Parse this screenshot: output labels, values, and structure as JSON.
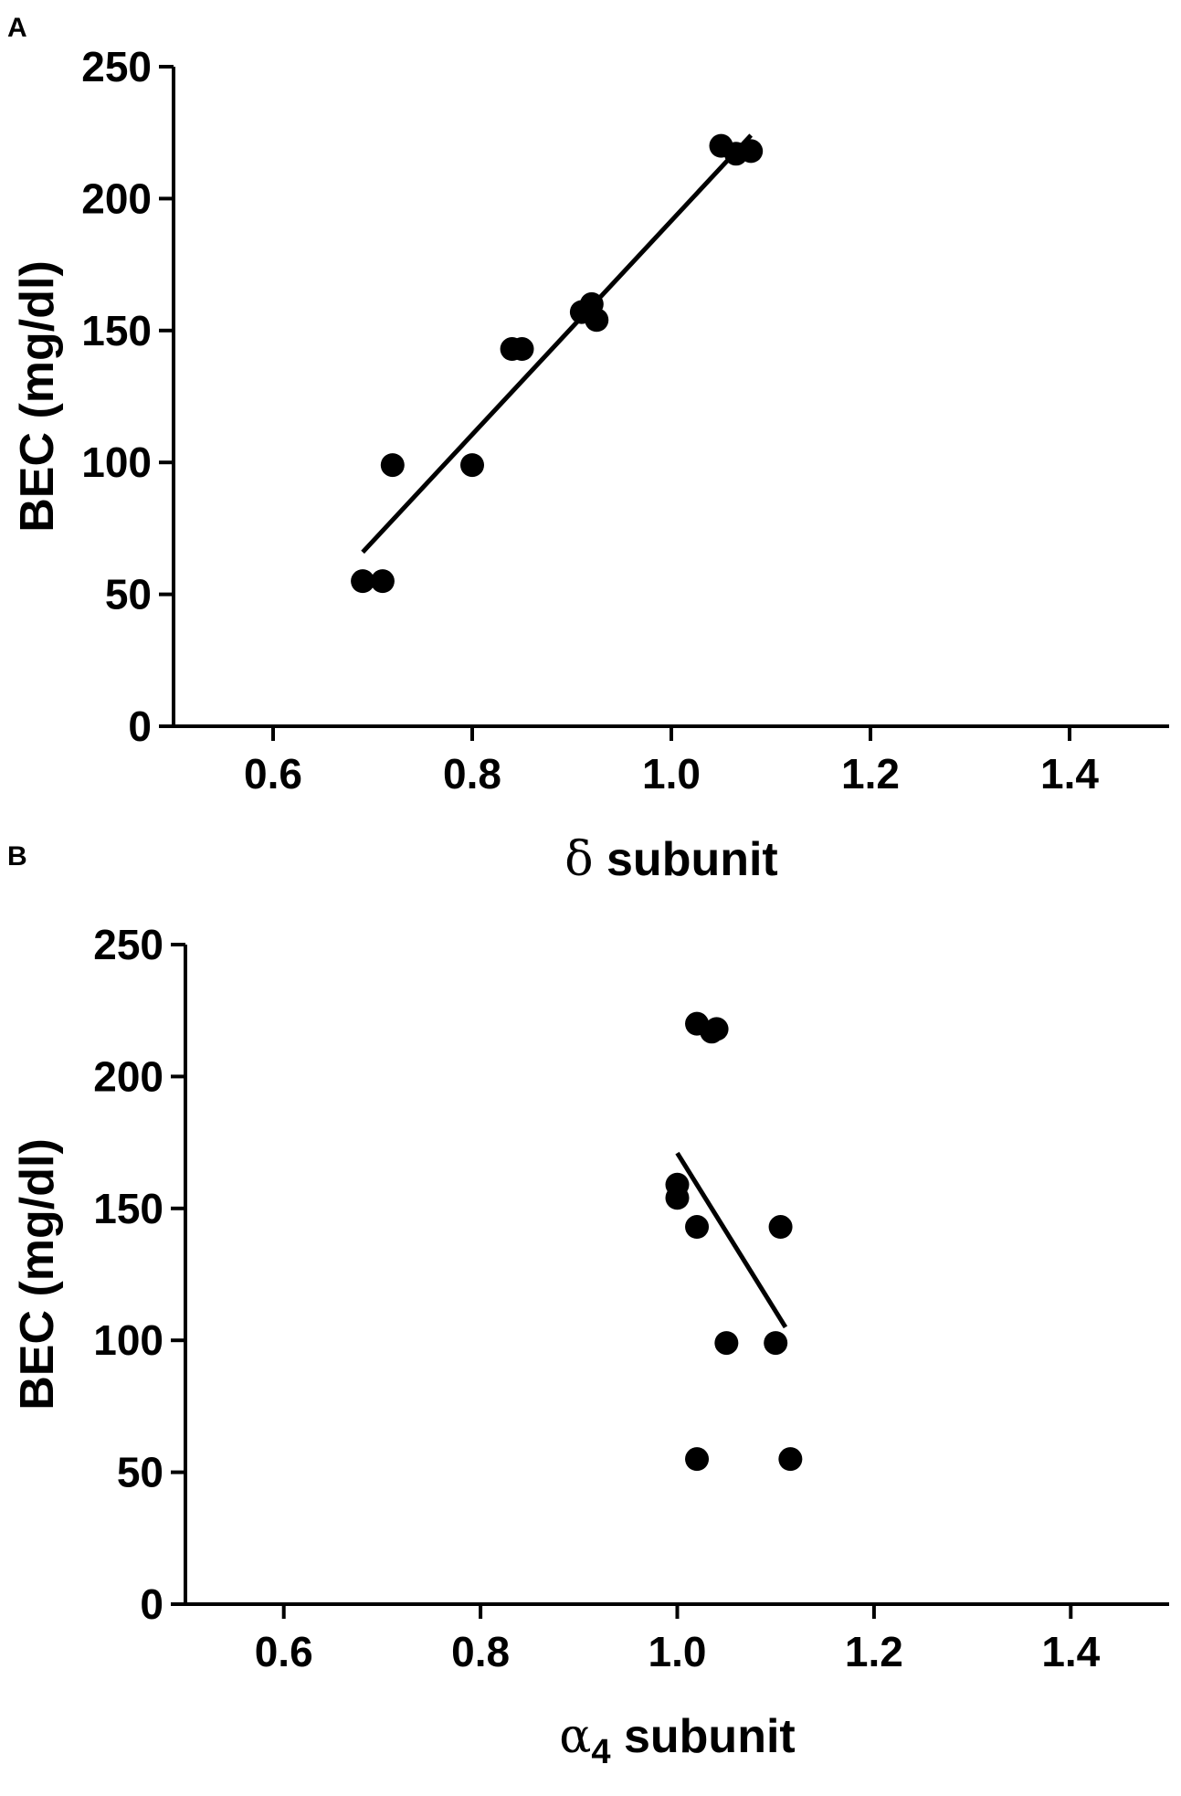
{
  "chart_data": [
    {
      "type": "scatter",
      "panel_label": "A",
      "xlabel_symbol": "δ",
      "xlabel_sub": "",
      "xlabel_rest": " subunit",
      "ylabel": "BEC (mg/dl)",
      "xlim": [
        0.5,
        1.5
      ],
      "ylim": [
        0,
        250
      ],
      "xticks": [
        0.6,
        0.8,
        1.0,
        1.2,
        1.4
      ],
      "xtick_labels": [
        "0.6",
        "0.8",
        "1.0",
        "1.2",
        "1.4"
      ],
      "yticks": [
        0,
        50,
        100,
        150,
        200,
        250
      ],
      "ytick_labels": [
        "0",
        "50",
        "100",
        "150",
        "200",
        "250"
      ],
      "grid": false,
      "points": [
        {
          "x": 0.69,
          "y": 55
        },
        {
          "x": 0.71,
          "y": 55
        },
        {
          "x": 0.72,
          "y": 99
        },
        {
          "x": 0.8,
          "y": 99
        },
        {
          "x": 0.84,
          "y": 143
        },
        {
          "x": 0.85,
          "y": 143
        },
        {
          "x": 0.91,
          "y": 157
        },
        {
          "x": 0.92,
          "y": 160
        },
        {
          "x": 0.925,
          "y": 154
        },
        {
          "x": 1.05,
          "y": 220
        },
        {
          "x": 1.065,
          "y": 217
        },
        {
          "x": 1.08,
          "y": 218
        }
      ],
      "fit_line": {
        "x": [
          0.69,
          1.08
        ],
        "y": [
          66,
          224
        ]
      }
    },
    {
      "type": "scatter",
      "panel_label": "B",
      "xlabel_symbol": "α",
      "xlabel_sub": "4",
      "xlabel_rest": " subunit",
      "ylabel": "BEC (mg/dl)",
      "xlim": [
        0.5,
        1.5
      ],
      "ylim": [
        0,
        250
      ],
      "xticks": [
        0.6,
        0.8,
        1.0,
        1.2,
        1.4
      ],
      "xtick_labels": [
        "0.6",
        "0.8",
        "1.0",
        "1.2",
        "1.4"
      ],
      "yticks": [
        0,
        50,
        100,
        150,
        200,
        250
      ],
      "ytick_labels": [
        "0",
        "50",
        "100",
        "150",
        "200",
        "250"
      ],
      "grid": false,
      "points": [
        {
          "x": 1.0,
          "y": 159
        },
        {
          "x": 1.0,
          "y": 154
        },
        {
          "x": 1.02,
          "y": 143
        },
        {
          "x": 1.02,
          "y": 220
        },
        {
          "x": 1.035,
          "y": 217
        },
        {
          "x": 1.04,
          "y": 218
        },
        {
          "x": 1.05,
          "y": 99
        },
        {
          "x": 1.1,
          "y": 99
        },
        {
          "x": 1.105,
          "y": 143
        },
        {
          "x": 1.02,
          "y": 55
        },
        {
          "x": 1.115,
          "y": 55
        }
      ],
      "fit_line": {
        "x": [
          1.0,
          1.11
        ],
        "y": [
          171,
          105
        ]
      }
    }
  ]
}
